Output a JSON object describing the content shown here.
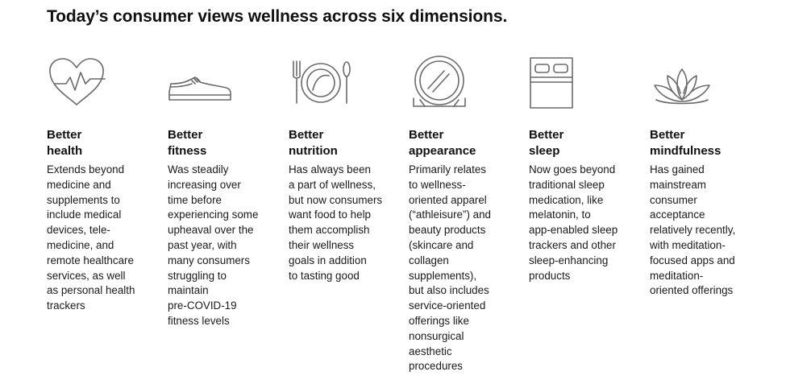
{
  "title": "Today’s consumer views wellness across six dimensions.",
  "dimensions": [
    {
      "icon": "heart-pulse-icon",
      "heading": "Better\nhealth",
      "description": "Extends beyond\nmedicine and\nsupplements to\ninclude medical\ndevices, tele-\nmedicine, and\nremote healthcare\nservices, as well\nas personal health\ntrackers"
    },
    {
      "icon": "sneaker-icon",
      "heading": "Better\nfitness",
      "description": "Was steadily\nincreasing over\ntime before\nexperiencing some\nupheaval over the\npast year, with\nmany consumers\nstruggling to\nmaintain\npre-COVID-19\nfitness levels"
    },
    {
      "icon": "plate-cutlery-icon",
      "heading": "Better\nnutrition",
      "description": "Has always been\na part of wellness,\nbut now consumers\nwant food to help\nthem accomplish\ntheir wellness\ngoals in addition\nto tasting good"
    },
    {
      "icon": "mirror-icon",
      "heading": "Better\nappearance",
      "description": "Primarily relates\nto wellness-\noriented apparel\n(“athleisure”) and\nbeauty products\n(skincare and\ncollagen\nsupplements),\nbut also includes\nservice-oriented\nofferings like\nnonsurgical\naesthetic\nprocedures"
    },
    {
      "icon": "bed-icon",
      "heading": "Better\nsleep",
      "description": "Now goes beyond\ntraditional sleep\nmedication, like\nmelatonin, to\napp-enabled sleep\ntrackers and other\nsleep-enhancing\nproducts"
    },
    {
      "icon": "lotus-icon",
      "heading": "Better\nmindfulness",
      "description": "Has gained\nmainstream\nconsumer\nacceptance\nrelatively recently,\nwith meditation-\nfocused apps and\nmeditation-\noriented offerings"
    }
  ]
}
